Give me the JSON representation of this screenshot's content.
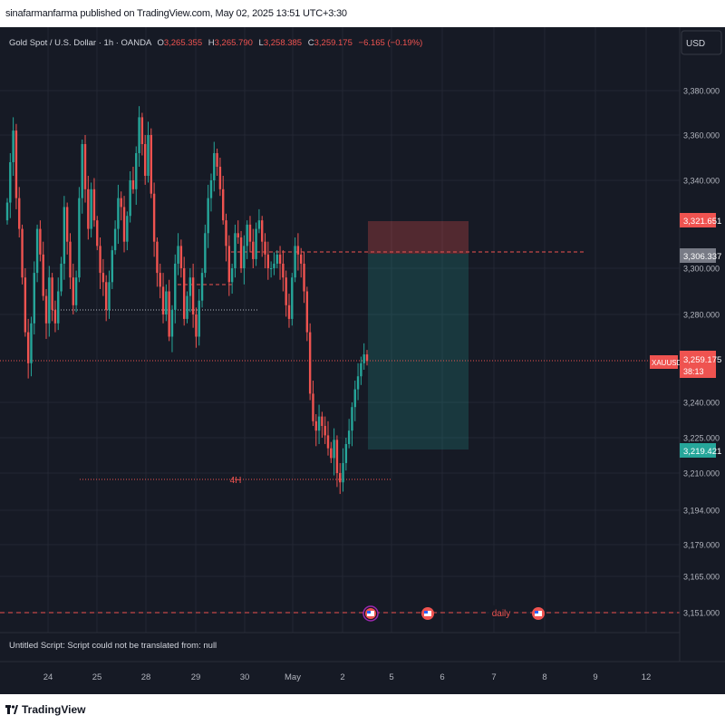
{
  "header": {
    "publisher": "sinafarmanfarma published on TradingView.com, May 02, 2025 13:51 UTC+3:30"
  },
  "legend": {
    "symbol": "Gold Spot / U.S. Dollar · 1h · OANDA",
    "o_label": "O",
    "o_value": "3,265.355",
    "h_label": "H",
    "h_value": "3,265.790",
    "l_label": "L",
    "l_value": "3,258.385",
    "c_label": "C",
    "c_value": "3,259.175",
    "change": "−6.165 (−0.19%)"
  },
  "currency_button": "USD",
  "script_error": "Untitled Script: Script could not be translated from: null",
  "footer": {
    "brand": "TradingView"
  },
  "colors": {
    "background": "#161a25",
    "up": "#26a69a",
    "down": "#ef5350",
    "grid": "#232734",
    "text": "#b2b5be"
  },
  "chart_data": {
    "type": "candlestick",
    "symbol": "XAUUSD",
    "timeframe": "1h",
    "y_ticks": [
      "3,380.000",
      "3,360.000",
      "3,340.000",
      "3,300.000",
      "3,280.000",
      "3,240.000",
      "3,225.000",
      "3,210.000",
      "3,194.000",
      "3,179.000",
      "3,165.000",
      "3,151.000"
    ],
    "x_ticks": [
      "24",
      "25",
      "28",
      "29",
      "30",
      "May",
      "2",
      "5",
      "6",
      "7",
      "8",
      "9",
      "12"
    ],
    "price_labels": {
      "stop": "3,321.651",
      "entry": "3,306.337",
      "symbol": "XAUUSD",
      "current": "3,259.175",
      "countdown": "38:13",
      "target": "3,219.421"
    },
    "annotations": {
      "level_4h": "4H",
      "level_daily": "daily"
    },
    "levels": {
      "stop": 3321.651,
      "entry": 3306.337,
      "current": 3259.175,
      "target": 3219.421,
      "level_4h": 3209.5,
      "daily": 3151
    },
    "candles_close": [
      3330,
      3348,
      3362,
      3332,
      3318,
      3296,
      3272,
      3258,
      3276,
      3298,
      3318,
      3306,
      3288,
      3276,
      3296,
      3282,
      3276,
      3290,
      3302,
      3328,
      3312,
      3296,
      3284,
      3296,
      3332,
      3356,
      3336,
      3318,
      3336,
      3322,
      3310,
      3298,
      3294,
      3282,
      3294,
      3308,
      3318,
      3332,
      3328,
      3312,
      3324,
      3340,
      3336,
      3352,
      3368,
      3356,
      3342,
      3360,
      3334,
      3312,
      3298,
      3292,
      3280,
      3290,
      3270,
      3282,
      3302,
      3310,
      3300,
      3278,
      3288,
      3296,
      3280,
      3270,
      3286,
      3298,
      3316,
      3332,
      3340,
      3352,
      3346,
      3336,
      3322,
      3310,
      3294,
      3300,
      3316,
      3314,
      3300,
      3310,
      3320,
      3312,
      3304,
      3318,
      3322,
      3312,
      3306,
      3300,
      3300,
      3302,
      3306,
      3302,
      3296,
      3284,
      3278,
      3296,
      3310,
      3306,
      3302,
      3290,
      3272,
      3244,
      3232,
      3228,
      3234,
      3230,
      3226,
      3220,
      3216,
      3224,
      3210,
      3206,
      3214,
      3222,
      3228,
      3238,
      3246,
      3252,
      3258,
      3262,
      3259
    ],
    "risk_zone": [
      3306.337,
      3321.651
    ],
    "reward_zone": [
      3219.421,
      3306.337
    ]
  }
}
